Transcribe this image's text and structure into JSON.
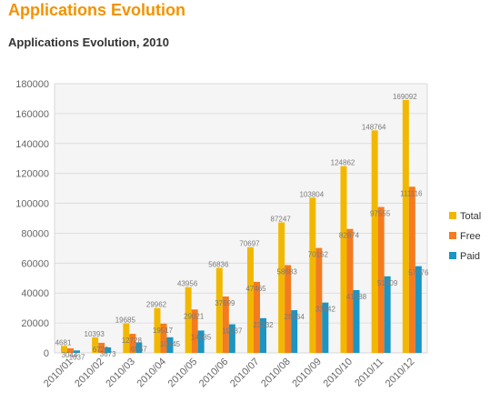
{
  "page": {
    "heading": "Applications Evolution"
  },
  "chart_data": {
    "type": "bar",
    "title": "Applications Evolution, 2010",
    "xlabel": "",
    "ylabel": "",
    "categories": [
      "2010/01",
      "2010/02",
      "2010/03",
      "2010/04",
      "2010/05",
      "2010/06",
      "2010/07",
      "2010/08",
      "2010/09",
      "2010/10",
      "2010/11",
      "2010/12"
    ],
    "series": [
      {
        "name": "Total",
        "color": "#f2b800",
        "values": [
          4681,
          10393,
          19685,
          29962,
          43956,
          56836,
          70697,
          87247,
          103804,
          124862,
          148764,
          169092
        ]
      },
      {
        "name": "Free",
        "color": "#f47b20",
        "values": [
          3044,
          6720,
          12728,
          19517,
          29021,
          37699,
          47465,
          58683,
          70162,
          82874,
          97555,
          111116
        ]
      },
      {
        "name": "Paid",
        "color": "#1a95c4",
        "values": [
          1637,
          3673,
          6957,
          10445,
          14935,
          19137,
          23232,
          28564,
          33642,
          41988,
          51209,
          57976
        ]
      }
    ],
    "y_ticks": [
      "0",
      "20000",
      "40000",
      "60000",
      "80000",
      "100000",
      "120000",
      "140000",
      "160000",
      "180000"
    ],
    "ylim": [
      0,
      180000
    ],
    "grid": true,
    "legend_position": "right"
  }
}
